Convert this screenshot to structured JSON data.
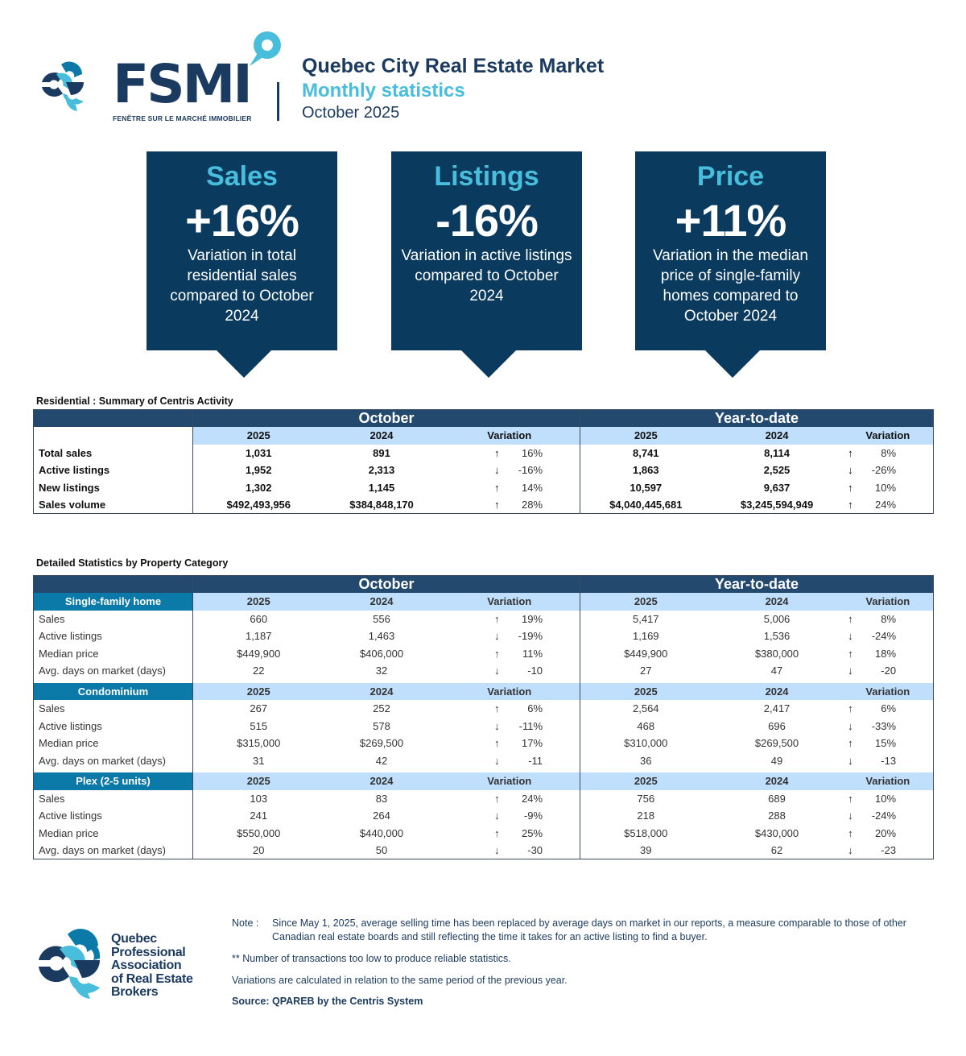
{
  "header": {
    "brand": "FSMI",
    "brand_tagline": "FENÊTRE SUR LE MARCHÉ IMMOBILIER",
    "title": "Quebec City Real Estate Market",
    "subtitle": "Monthly statistics",
    "period": "October 2025"
  },
  "colors": {
    "navy": "#0a3a5e",
    "table_header": "#234a6e",
    "accent_cyan": "#48bddc",
    "category_blue": "#0b7aa8",
    "year_row": "#bfdffc"
  },
  "kpis": [
    {
      "title": "Sales",
      "value": "+16%",
      "description": "Variation in total residential sales compared to October 2024"
    },
    {
      "title": "Listings",
      "value": "-16%",
      "description": "Variation in active listings compared to October 2024"
    },
    {
      "title": "Price",
      "value": "+11%",
      "description": "Variation in the median price of single-family homes compared to October 2024"
    }
  ],
  "summary": {
    "label": "Residential : Summary of Centris Activity",
    "period_headers": [
      "October",
      "Year-to-date"
    ],
    "columns": [
      "2025",
      "2024",
      "Variation",
      "2025",
      "2024",
      "Variation"
    ],
    "rows": [
      {
        "label": "Total sales",
        "oct_2025": "1,031",
        "oct_2024": "891",
        "oct_dir": "up",
        "oct_var": "16%",
        "ytd_2025": "8,741",
        "ytd_2024": "8,114",
        "ytd_dir": "up",
        "ytd_var": "8%"
      },
      {
        "label": "Active listings",
        "oct_2025": "1,952",
        "oct_2024": "2,313",
        "oct_dir": "down",
        "oct_var": "-16%",
        "ytd_2025": "1,863",
        "ytd_2024": "2,525",
        "ytd_dir": "down",
        "ytd_var": "-26%"
      },
      {
        "label": "New listings",
        "oct_2025": "1,302",
        "oct_2024": "1,145",
        "oct_dir": "up",
        "oct_var": "14%",
        "ytd_2025": "10,597",
        "ytd_2024": "9,637",
        "ytd_dir": "up",
        "ytd_var": "10%"
      },
      {
        "label": "Sales volume",
        "oct_2025": "$492,493,956",
        "oct_2024": "$384,848,170",
        "oct_dir": "up",
        "oct_var": "28%",
        "ytd_2025": "$4,040,445,681",
        "ytd_2024": "$3,245,594,949",
        "ytd_dir": "up",
        "ytd_var": "24%"
      }
    ]
  },
  "detail": {
    "label": "Detailed Statistics by Property Category",
    "period_headers": [
      "October",
      "Year-to-date"
    ],
    "columns": [
      "2025",
      "2024",
      "Variation",
      "2025",
      "2024",
      "Variation"
    ],
    "categories": [
      {
        "name": "Single-family home",
        "rows": [
          {
            "label": "Sales",
            "oct_2025": "660",
            "oct_2024": "556",
            "oct_dir": "up",
            "oct_var": "19%",
            "ytd_2025": "5,417",
            "ytd_2024": "5,006",
            "ytd_dir": "up",
            "ytd_var": "8%"
          },
          {
            "label": "Active listings",
            "oct_2025": "1,187",
            "oct_2024": "1,463",
            "oct_dir": "down",
            "oct_var": "-19%",
            "ytd_2025": "1,169",
            "ytd_2024": "1,536",
            "ytd_dir": "down",
            "ytd_var": "-24%"
          },
          {
            "label": "Median price",
            "oct_2025": "$449,900",
            "oct_2024": "$406,000",
            "oct_dir": "up",
            "oct_var": "11%",
            "ytd_2025": "$449,900",
            "ytd_2024": "$380,000",
            "ytd_dir": "up",
            "ytd_var": "18%"
          },
          {
            "label": "Avg. days on market (days)",
            "oct_2025": "22",
            "oct_2024": "32",
            "oct_dir": "down",
            "oct_var": "-10",
            "ytd_2025": "27",
            "ytd_2024": "47",
            "ytd_dir": "down",
            "ytd_var": "-20"
          }
        ]
      },
      {
        "name": "Condominium",
        "rows": [
          {
            "label": "Sales",
            "oct_2025": "267",
            "oct_2024": "252",
            "oct_dir": "up",
            "oct_var": "6%",
            "ytd_2025": "2,564",
            "ytd_2024": "2,417",
            "ytd_dir": "up",
            "ytd_var": "6%"
          },
          {
            "label": "Active listings",
            "oct_2025": "515",
            "oct_2024": "578",
            "oct_dir": "down",
            "oct_var": "-11%",
            "ytd_2025": "468",
            "ytd_2024": "696",
            "ytd_dir": "down",
            "ytd_var": "-33%"
          },
          {
            "label": "Median price",
            "oct_2025": "$315,000",
            "oct_2024": "$269,500",
            "oct_dir": "up",
            "oct_var": "17%",
            "ytd_2025": "$310,000",
            "ytd_2024": "$269,500",
            "ytd_dir": "up",
            "ytd_var": "15%"
          },
          {
            "label": "Avg. days on market (days)",
            "oct_2025": "31",
            "oct_2024": "42",
            "oct_dir": "down",
            "oct_var": "-11",
            "ytd_2025": "36",
            "ytd_2024": "49",
            "ytd_dir": "down",
            "ytd_var": "-13"
          }
        ]
      },
      {
        "name": "Plex (2-5 units)",
        "rows": [
          {
            "label": "Sales",
            "oct_2025": "103",
            "oct_2024": "83",
            "oct_dir": "up",
            "oct_var": "24%",
            "ytd_2025": "756",
            "ytd_2024": "689",
            "ytd_dir": "up",
            "ytd_var": "10%"
          },
          {
            "label": "Active listings",
            "oct_2025": "241",
            "oct_2024": "264",
            "oct_dir": "down",
            "oct_var": "-9%",
            "ytd_2025": "218",
            "ytd_2024": "288",
            "ytd_dir": "down",
            "ytd_var": "-24%"
          },
          {
            "label": "Median price",
            "oct_2025": "$550,000",
            "oct_2024": "$440,000",
            "oct_dir": "up",
            "oct_var": "25%",
            "ytd_2025": "$518,000",
            "ytd_2024": "$430,000",
            "ytd_dir": "up",
            "ytd_var": "20%"
          },
          {
            "label": "Avg. days on market (days)",
            "oct_2025": "20",
            "oct_2024": "50",
            "oct_dir": "down",
            "oct_var": "-30",
            "ytd_2025": "39",
            "ytd_2024": "62",
            "ytd_dir": "down",
            "ytd_var": "-23"
          }
        ]
      }
    ]
  },
  "footer": {
    "org_lines": [
      "Quebec",
      "Professional",
      "Association",
      "of Real Estate",
      "Brokers"
    ],
    "note_key": "Note :",
    "note_text": "Since May 1, 2025, average selling time has been replaced by average days on market in our reports, a measure comparable to those of other Canadian real estate boards and still reflecting the time it takes for an active listing to find a buyer.",
    "asterisk_note": "**  Number of transactions too low to produce reliable statistics.",
    "variation_note": "Variations are calculated in relation to the same period of the previous year.",
    "source": "Source: QPAREB by the Centris System"
  },
  "icons": {
    "up": "arrow-up-icon",
    "down": "arrow-down-icon"
  }
}
